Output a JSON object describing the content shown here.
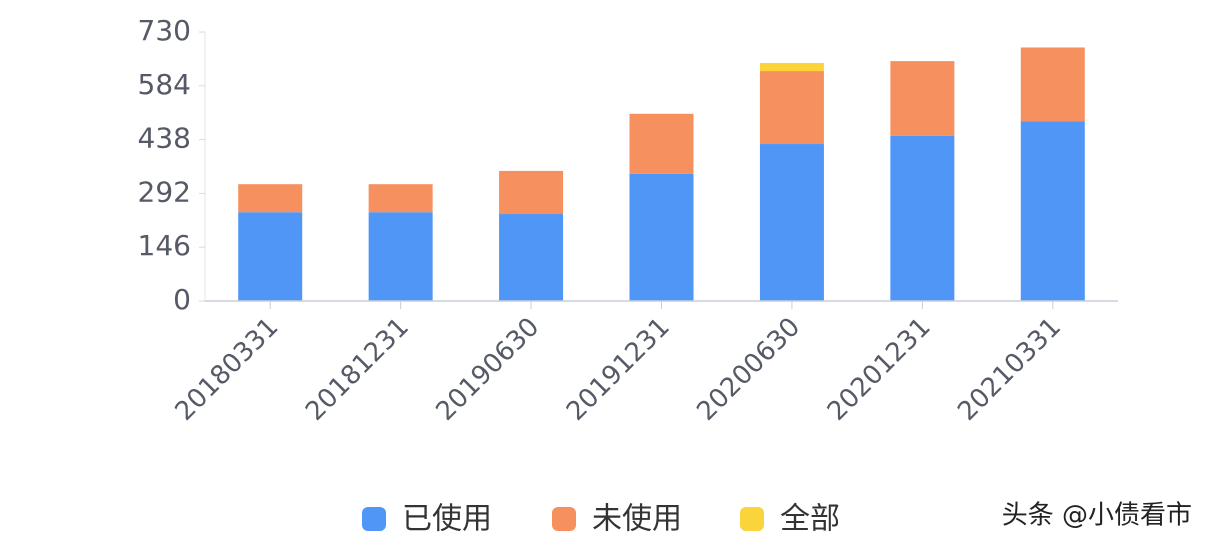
{
  "chart_data": {
    "type": "stacked_bar",
    "categories": [
      "20180331",
      "20181231",
      "20190630",
      "20191231",
      "20200630",
      "20201231",
      "20210331"
    ],
    "series": [
      {
        "name": "已使用",
        "color": "#4f96f7",
        "values": [
          241,
          241,
          236,
          345,
          426,
          448,
          488
        ]
      },
      {
        "name": "未使用",
        "color": "#f6905e",
        "values": [
          76,
          76,
          117,
          163,
          198,
          203,
          200
        ]
      },
      {
        "name": "全部",
        "color": "#fbd43c",
        "values": [
          0,
          0,
          0,
          0,
          22,
          0,
          0
        ]
      }
    ],
    "ylim": [
      0,
      730
    ],
    "yticks": [
      0,
      146,
      292,
      438,
      584,
      730
    ],
    "legend": "bottom",
    "watermark": "头条 @小债看市"
  }
}
